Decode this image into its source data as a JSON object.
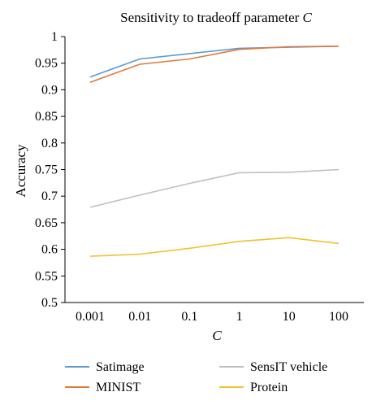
{
  "chart_data": {
    "type": "line",
    "title": "Sensitivity to tradeoff parameter ",
    "title_param": "C",
    "xlabel": "C",
    "ylabel": "Accuracy",
    "x_scale": "log",
    "x_ticks": [
      "0.001",
      "0.01",
      "0.1",
      "1",
      "10",
      "100"
    ],
    "x": [
      0.001,
      0.01,
      0.1,
      1,
      10,
      100
    ],
    "ylim": [
      0.5,
      1.0
    ],
    "y_ticks": [
      "0.5",
      "0.55",
      "0.6",
      "0.65",
      "0.7",
      "0.75",
      "0.8",
      "0.85",
      "0.9",
      "0.95",
      "1"
    ],
    "y_tick_values": [
      0.5,
      0.55,
      0.6,
      0.65,
      0.7,
      0.75,
      0.8,
      0.85,
      0.9,
      0.95,
      1.0
    ],
    "grid": false,
    "legend_position": "bottom",
    "series": [
      {
        "name": "Satimage",
        "color": "#5b9bd5",
        "values": [
          0.924,
          0.958,
          0.968,
          0.978,
          0.98,
          0.982
        ]
      },
      {
        "name": "SensIT vehicle",
        "color": "#bfbfbf",
        "values": [
          0.679,
          0.702,
          0.724,
          0.744,
          0.745,
          0.75
        ]
      },
      {
        "name": "MINIST",
        "color": "#e07b39",
        "values": [
          0.914,
          0.948,
          0.958,
          0.976,
          0.981,
          0.982
        ]
      },
      {
        "name": "Protein",
        "color": "#f2c12e",
        "values": [
          0.587,
          0.591,
          0.602,
          0.615,
          0.622,
          0.611
        ]
      }
    ]
  }
}
